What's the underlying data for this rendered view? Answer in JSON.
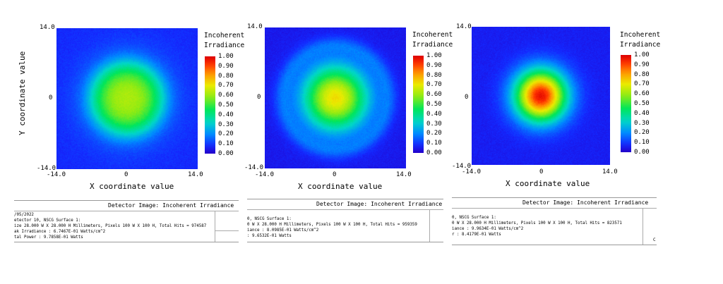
{
  "chart_data": [
    {
      "type": "heatmap",
      "legend_title": [
        "Incoherent",
        "Irradiance"
      ],
      "colorbar_ticks": [
        "1.00",
        "0.90",
        "0.80",
        "0.70",
        "0.60",
        "0.50",
        "0.40",
        "0.30",
        "0.20",
        "0.10",
        "0.00"
      ],
      "x_ticks": [
        "-14.0",
        "0",
        "14.0"
      ],
      "y_ticks": [
        "14.0",
        "0",
        "-14.0"
      ],
      "xlabel": "X coordinate value",
      "ylabel": "Y coordinate value",
      "xlim": [
        -14.0,
        14.0
      ],
      "ylim": [
        -14.0,
        14.0
      ],
      "profile": {
        "peak": 0.62,
        "sigma": 5.5,
        "flatten": 0.55,
        "floor": 0.08,
        "ring": 0.0
      },
      "info": {
        "header": "Detector Image: Incoherent Irradiance",
        "lines": [
          "/05/2022",
          "etector 10, NSCG Surface 1:",
          "ize 28.000 W X 28.000 H Millimeters, Pixels 100 W X 100 H, Total Hits = 974587",
          "ak Irradiance : 6.7467E-01 Watts/cm^2",
          "tal Power     : 9.7858E-01 Watts"
        ],
        "corner_letter": ""
      }
    },
    {
      "type": "heatmap",
      "legend_title": [
        "Incoherent",
        "Irradiance"
      ],
      "colorbar_ticks": [
        "1.00",
        "0.90",
        "0.80",
        "0.70",
        "0.60",
        "0.50",
        "0.40",
        "0.30",
        "0.20",
        "0.10",
        "0.00"
      ],
      "x_ticks": [
        "-14.0",
        "0",
        "14.0"
      ],
      "y_ticks": [
        "14.0",
        "0",
        "-14.0"
      ],
      "xlabel": "X coordinate value",
      "ylabel": "",
      "xlim": [
        -14.0,
        14.0
      ],
      "ylim": [
        -14.0,
        14.0
      ],
      "profile": {
        "peak": 0.72,
        "sigma": 4.6,
        "flatten": 0.0,
        "floor": 0.05,
        "ring": 0.08
      },
      "info": {
        "header": "Detector Image: Incoherent Irradiance",
        "lines": [
          "",
          "0, NSCG Surface 1:",
          "0 W X 28.000 H Millimeters, Pixels 100 W X 100 H, Total Hits = 959359",
          "iance : 8.0985E-01 Watts/cm^2",
          "      : 9.6532E-01 Watts"
        ],
        "corner_letter": ""
      }
    },
    {
      "type": "heatmap",
      "legend_title": [
        "Incoherent",
        "Irradiance"
      ],
      "colorbar_ticks": [
        "1.00",
        "0.90",
        "0.80",
        "0.70",
        "0.60",
        "0.50",
        "0.40",
        "0.30",
        "0.20",
        "0.10",
        "0.00"
      ],
      "x_ticks": [
        "-14.0",
        "0",
        "14.0"
      ],
      "y_ticks": [
        "14.0",
        "0",
        "-14.0"
      ],
      "xlabel": "X coordinate value",
      "ylabel": "",
      "xlim": [
        -14.0,
        14.0
      ],
      "ylim": [
        -14.0,
        14.0
      ],
      "profile": {
        "peak": 0.97,
        "sigma": 3.6,
        "flatten": 0.0,
        "floor": 0.06,
        "ring": 0.0
      },
      "info": {
        "header": "Detector Image: Incoherent Irradiance",
        "lines": [
          "",
          "0, NSCG Surface 1:",
          "0 W X 28.000 H Millimeters, Pixels 100 W X 100 H, Total Hits = 823571",
          "iance : 9.9634E-01 Watts/cm^2",
          "r     : 8.4179E-01 Watts"
        ],
        "corner_letter": "C"
      }
    }
  ]
}
